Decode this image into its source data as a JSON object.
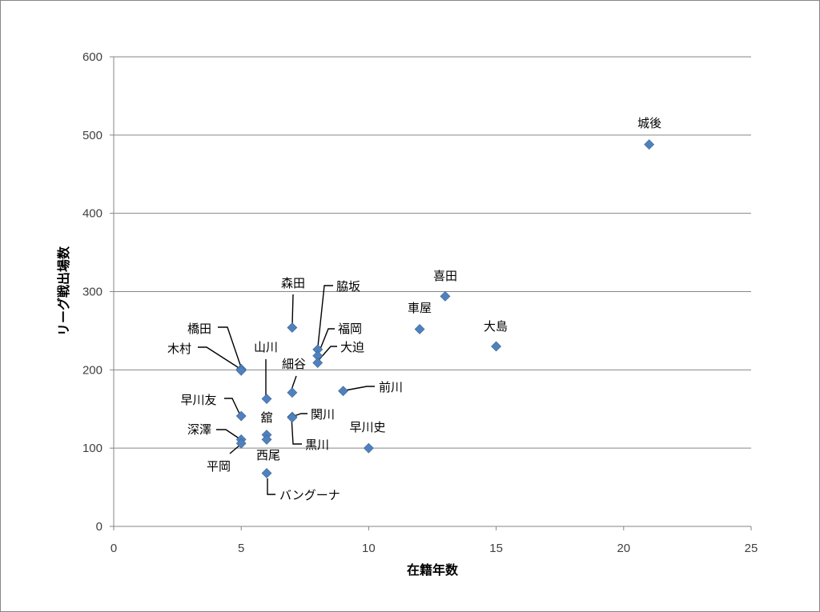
{
  "chart_data": {
    "type": "scatter",
    "xlabel": "在籍年数",
    "ylabel": "リーグ戦出場数",
    "xlim": [
      0,
      25
    ],
    "ylim": [
      0,
      600
    ],
    "xticks": [
      0,
      5,
      10,
      15,
      20,
      25
    ],
    "yticks": [
      0,
      100,
      200,
      300,
      400,
      500,
      600
    ],
    "grid": "horizontal",
    "marker_color": "#4f81bd",
    "points": [
      {
        "name": "城後",
        "x": 21,
        "y": 488
      },
      {
        "name": "喜田",
        "x": 13,
        "y": 294
      },
      {
        "name": "車屋",
        "x": 12,
        "y": 252
      },
      {
        "name": "大島",
        "x": 15,
        "y": 230
      },
      {
        "name": "森田",
        "x": 7,
        "y": 254
      },
      {
        "name": "脇坂",
        "x": 8,
        "y": 226
      },
      {
        "name": "福岡",
        "x": 8,
        "y": 218
      },
      {
        "name": "大迫",
        "x": 8,
        "y": 209
      },
      {
        "name": "細谷",
        "x": 7,
        "y": 171
      },
      {
        "name": "山川",
        "x": 6,
        "y": 163
      },
      {
        "name": "橋田",
        "x": 5,
        "y": 201
      },
      {
        "name": "木村",
        "x": 5,
        "y": 199
      },
      {
        "name": "前川",
        "x": 9,
        "y": 173
      },
      {
        "name": "早川友",
        "x": 5,
        "y": 141
      },
      {
        "name": "関川",
        "x": 7,
        "y": 140
      },
      {
        "name": "早川史",
        "x": 10,
        "y": 100
      },
      {
        "name": "舘",
        "x": 6,
        "y": 117
      },
      {
        "name": "西尾",
        "x": 6,
        "y": 111
      },
      {
        "name": "黒川",
        "x": 7,
        "y": 139
      },
      {
        "name": "深澤",
        "x": 5,
        "y": 111
      },
      {
        "name": "平岡",
        "x": 5,
        "y": 106
      },
      {
        "name": "バングーナ",
        "x": 6,
        "y": 68
      }
    ]
  }
}
